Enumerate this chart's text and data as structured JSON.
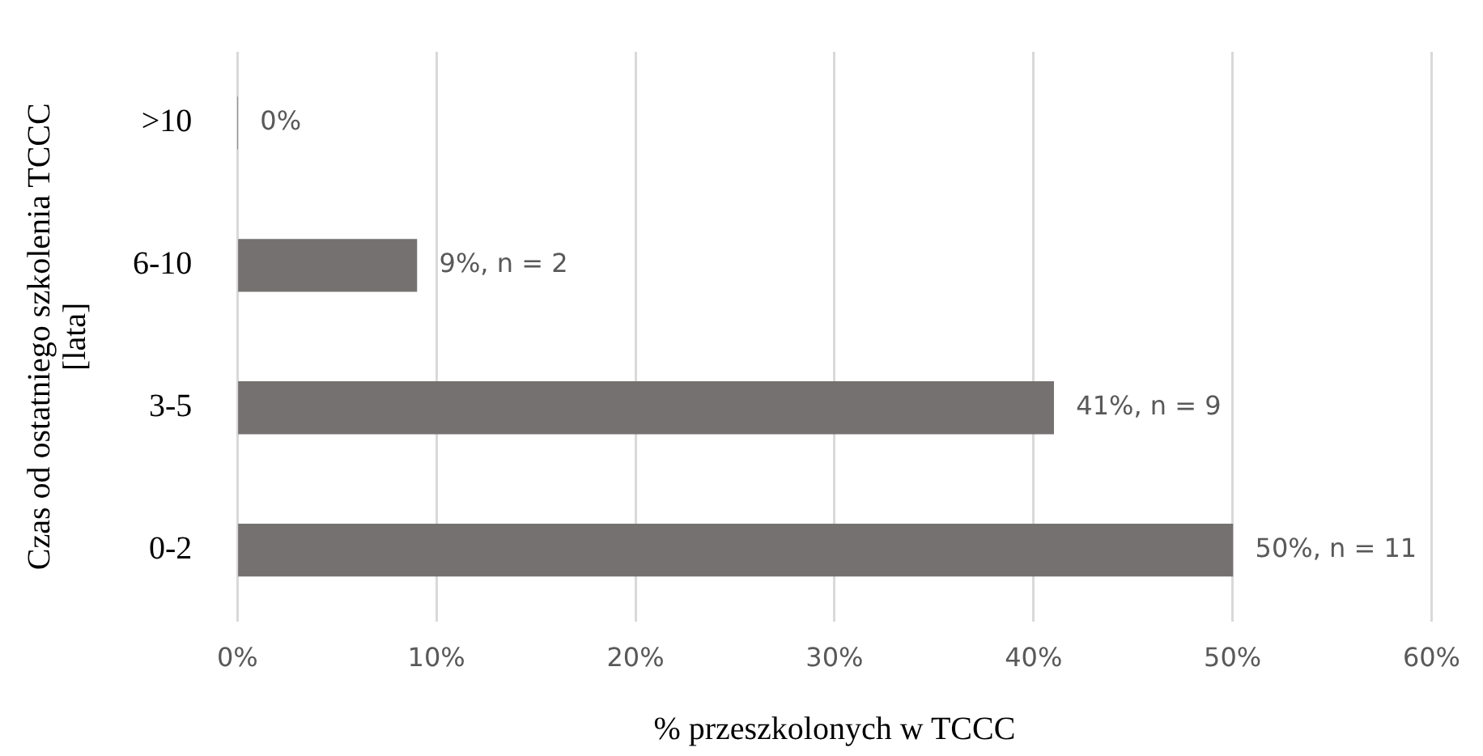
{
  "chart_data": {
    "type": "bar",
    "orientation": "horizontal",
    "categories": [
      ">10",
      "6-10",
      "3-5",
      "0-2"
    ],
    "values": [
      0,
      9,
      41,
      50
    ],
    "color": "#767171",
    "value_labels": [
      "0%",
      "9%, n = 2",
      "41%, n = 9",
      "50%, n = 11"
    ],
    "xlim": [
      0,
      60
    ],
    "xticks": [
      {
        "value": 0,
        "label": "0%"
      },
      {
        "value": 10,
        "label": "10%"
      },
      {
        "value": 20,
        "label": "20%"
      },
      {
        "value": 30,
        "label": "30%"
      },
      {
        "value": 40,
        "label": "40%"
      },
      {
        "value": 50,
        "label": "50%"
      },
      {
        "value": 60,
        "label": "60%"
      }
    ],
    "xlabel": "% przeszkolonych w TCCC",
    "ylabel": "Czas od ostatniego szkolenia TCCC\n[lata]",
    "grid": "x",
    "legend": false
  }
}
